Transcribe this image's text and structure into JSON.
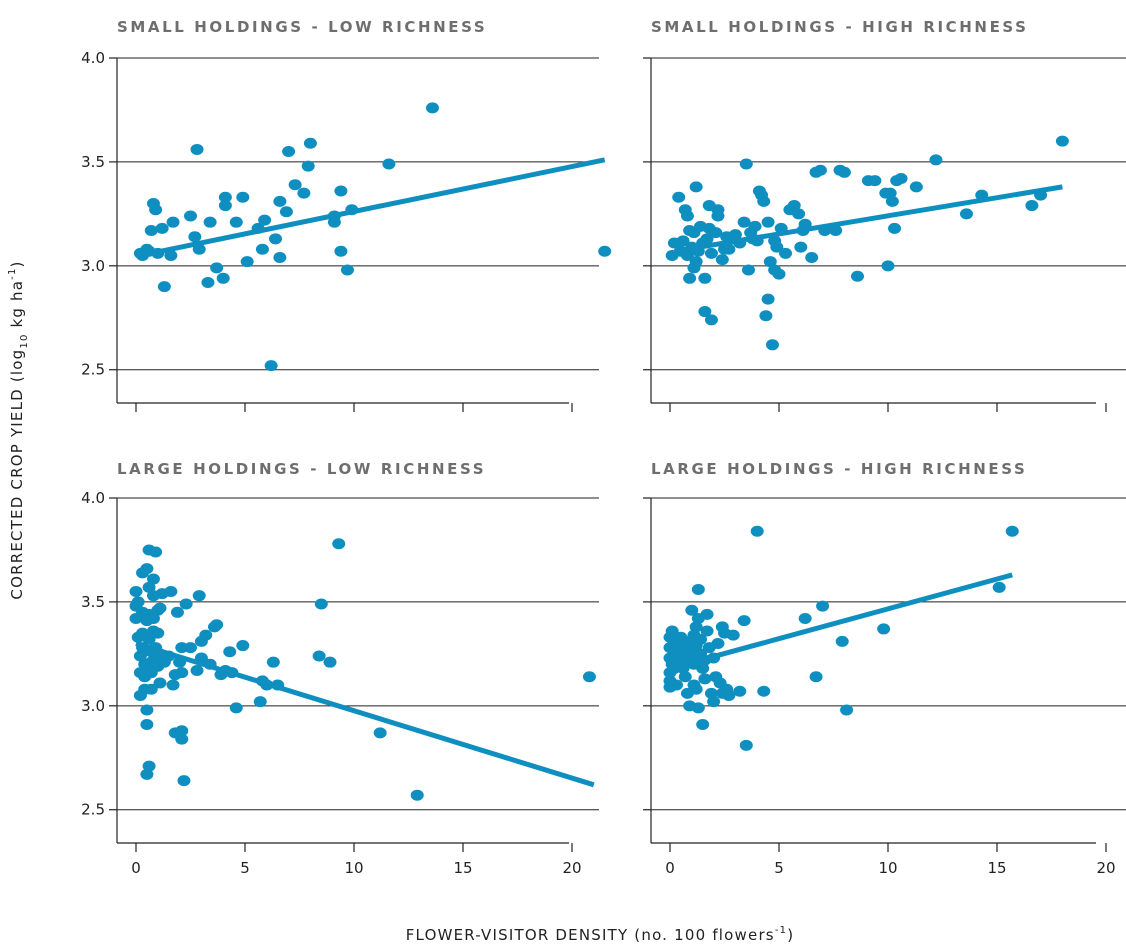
{
  "chart_data": [
    {
      "type": "scatter",
      "title": "SMALL HOLDINGS - LOW RICHNESS",
      "xlim": [
        -1,
        21.5
      ],
      "ylim": [
        2.34,
        4.0
      ],
      "yticks": [
        "2.5",
        "3.0",
        "3.5",
        "4.0"
      ],
      "xticks": [],
      "fit": {
        "x": [
          0.2,
          21.5
        ],
        "y": [
          3.05,
          3.51
        ]
      },
      "points": [
        [
          0.2,
          3.06
        ],
        [
          0.3,
          3.05
        ],
        [
          0.5,
          3.08
        ],
        [
          0.6,
          3.07
        ],
        [
          0.7,
          3.17
        ],
        [
          0.8,
          3.3
        ],
        [
          0.9,
          3.27
        ],
        [
          1.0,
          3.06
        ],
        [
          1.2,
          3.18
        ],
        [
          1.3,
          2.9
        ],
        [
          1.6,
          3.05
        ],
        [
          1.7,
          3.21
        ],
        [
          2.5,
          3.24
        ],
        [
          2.7,
          3.14
        ],
        [
          2.8,
          3.56
        ],
        [
          2.9,
          3.08
        ],
        [
          3.3,
          2.92
        ],
        [
          3.4,
          3.21
        ],
        [
          3.7,
          2.99
        ],
        [
          4.0,
          2.94
        ],
        [
          4.1,
          3.29
        ],
        [
          4.1,
          3.33
        ],
        [
          4.6,
          3.21
        ],
        [
          4.9,
          3.33
        ],
        [
          5.1,
          3.02
        ],
        [
          5.6,
          3.18
        ],
        [
          5.8,
          3.08
        ],
        [
          5.9,
          3.22
        ],
        [
          6.2,
          2.52
        ],
        [
          6.4,
          3.13
        ],
        [
          6.6,
          3.31
        ],
        [
          6.6,
          3.04
        ],
        [
          6.9,
          3.26
        ],
        [
          7.0,
          3.55
        ],
        [
          7.3,
          3.39
        ],
        [
          7.7,
          3.35
        ],
        [
          7.9,
          3.48
        ],
        [
          8.0,
          3.59
        ],
        [
          9.1,
          3.21
        ],
        [
          9.1,
          3.24
        ],
        [
          9.4,
          3.07
        ],
        [
          9.4,
          3.36
        ],
        [
          9.7,
          2.98
        ],
        [
          9.9,
          3.27
        ],
        [
          11.6,
          3.49
        ],
        [
          13.6,
          3.76
        ],
        [
          21.5,
          3.07
        ]
      ]
    },
    {
      "type": "scatter",
      "title": "SMALL HOLDINGS - HIGH RICHNESS",
      "xlim": [
        -1,
        21.5
      ],
      "ylim": [
        2.34,
        4.0
      ],
      "yticks": [
        "2.5",
        "3.0",
        "3.5",
        "4.0"
      ],
      "xticks": [],
      "fit": {
        "x": [
          0.2,
          18.0
        ],
        "y": [
          3.07,
          3.38
        ]
      },
      "points": [
        [
          0.1,
          3.05
        ],
        [
          0.2,
          3.11
        ],
        [
          0.4,
          3.33
        ],
        [
          0.5,
          3.07
        ],
        [
          0.6,
          3.12
        ],
        [
          0.7,
          3.27
        ],
        [
          0.8,
          3.24
        ],
        [
          0.8,
          3.05
        ],
        [
          0.9,
          2.94
        ],
        [
          0.9,
          3.17
        ],
        [
          1.0,
          3.09
        ],
        [
          1.1,
          3.16
        ],
        [
          1.1,
          2.99
        ],
        [
          1.2,
          3.38
        ],
        [
          1.2,
          3.02
        ],
        [
          1.3,
          3.07
        ],
        [
          1.4,
          3.19
        ],
        [
          1.5,
          3.11
        ],
        [
          1.6,
          2.78
        ],
        [
          1.6,
          2.94
        ],
        [
          1.7,
          3.13
        ],
        [
          1.8,
          3.18
        ],
        [
          1.8,
          3.29
        ],
        [
          1.9,
          2.74
        ],
        [
          1.9,
          3.06
        ],
        [
          2.1,
          3.16
        ],
        [
          2.2,
          3.24
        ],
        [
          2.2,
          3.27
        ],
        [
          2.4,
          3.03
        ],
        [
          2.5,
          3.08
        ],
        [
          2.6,
          3.14
        ],
        [
          2.7,
          3.08
        ],
        [
          2.9,
          3.13
        ],
        [
          3.0,
          3.15
        ],
        [
          3.2,
          3.11
        ],
        [
          3.4,
          3.21
        ],
        [
          3.5,
          3.49
        ],
        [
          3.6,
          2.98
        ],
        [
          3.7,
          3.16
        ],
        [
          3.8,
          3.13
        ],
        [
          3.9,
          3.19
        ],
        [
          4.0,
          3.12
        ],
        [
          4.1,
          3.36
        ],
        [
          4.2,
          3.34
        ],
        [
          4.3,
          3.31
        ],
        [
          4.4,
          2.76
        ],
        [
          4.5,
          3.21
        ],
        [
          4.5,
          2.84
        ],
        [
          4.6,
          3.02
        ],
        [
          4.7,
          2.62
        ],
        [
          4.8,
          2.98
        ],
        [
          4.8,
          3.12
        ],
        [
          4.9,
          3.09
        ],
        [
          5.0,
          2.96
        ],
        [
          5.1,
          3.18
        ],
        [
          5.3,
          3.06
        ],
        [
          5.5,
          3.27
        ],
        [
          5.7,
          3.29
        ],
        [
          5.9,
          3.25
        ],
        [
          6.0,
          3.09
        ],
        [
          6.1,
          3.17
        ],
        [
          6.2,
          3.2
        ],
        [
          6.5,
          3.04
        ],
        [
          6.7,
          3.45
        ],
        [
          6.9,
          3.46
        ],
        [
          7.1,
          3.17
        ],
        [
          7.6,
          3.17
        ],
        [
          7.8,
          3.46
        ],
        [
          8.0,
          3.45
        ],
        [
          8.6,
          2.95
        ],
        [
          9.1,
          3.41
        ],
        [
          9.4,
          3.41
        ],
        [
          9.9,
          3.35
        ],
        [
          10.0,
          3.0
        ],
        [
          10.1,
          3.35
        ],
        [
          10.2,
          3.31
        ],
        [
          10.3,
          3.18
        ],
        [
          10.4,
          3.41
        ],
        [
          10.6,
          3.42
        ],
        [
          11.3,
          3.38
        ],
        [
          12.2,
          3.51
        ],
        [
          13.6,
          3.25
        ],
        [
          14.3,
          3.34
        ],
        [
          16.6,
          3.29
        ],
        [
          17.0,
          3.34
        ],
        [
          18.0,
          3.6
        ]
      ]
    },
    {
      "type": "scatter",
      "title": "LARGE HOLDINGS - LOW RICHNESS",
      "xlim": [
        -1,
        21.5
      ],
      "ylim": [
        2.34,
        4.0
      ],
      "yticks": [
        "2.5",
        "3.0",
        "3.5",
        "4.0"
      ],
      "xticks": [
        "0",
        "5",
        "10",
        "15",
        "20"
      ],
      "fit": {
        "x": [
          0.0,
          21.0
        ],
        "y": [
          3.3,
          2.62
        ]
      },
      "points": [
        [
          0.0,
          3.42
        ],
        [
          0.0,
          3.48
        ],
        [
          0.0,
          3.55
        ],
        [
          0.1,
          3.33
        ],
        [
          0.1,
          3.5
        ],
        [
          0.2,
          3.24
        ],
        [
          0.2,
          3.16
        ],
        [
          0.2,
          3.05
        ],
        [
          0.3,
          3.64
        ],
        [
          0.3,
          3.45
        ],
        [
          0.3,
          3.35
        ],
        [
          0.3,
          3.28
        ],
        [
          0.4,
          3.2
        ],
        [
          0.4,
          3.14
        ],
        [
          0.4,
          3.08
        ],
        [
          0.5,
          3.66
        ],
        [
          0.5,
          3.41
        ],
        [
          0.5,
          2.98
        ],
        [
          0.5,
          2.91
        ],
        [
          0.5,
          2.67
        ],
        [
          0.6,
          2.71
        ],
        [
          0.6,
          3.75
        ],
        [
          0.6,
          3.57
        ],
        [
          0.6,
          3.44
        ],
        [
          0.6,
          3.32
        ],
        [
          0.7,
          3.26
        ],
        [
          0.7,
          3.21
        ],
        [
          0.7,
          3.16
        ],
        [
          0.7,
          3.08
        ],
        [
          0.8,
          3.61
        ],
        [
          0.8,
          3.53
        ],
        [
          0.8,
          3.42
        ],
        [
          0.8,
          3.36
        ],
        [
          0.9,
          3.74
        ],
        [
          0.9,
          3.28
        ],
        [
          0.9,
          3.23
        ],
        [
          1.0,
          3.46
        ],
        [
          1.0,
          3.35
        ],
        [
          1.0,
          3.19
        ],
        [
          1.1,
          3.47
        ],
        [
          1.1,
          3.25
        ],
        [
          1.1,
          3.11
        ],
        [
          1.2,
          3.54
        ],
        [
          1.3,
          3.21
        ],
        [
          1.5,
          3.24
        ],
        [
          1.6,
          3.55
        ],
        [
          1.7,
          3.1
        ],
        [
          1.8,
          3.15
        ],
        [
          1.8,
          2.87
        ],
        [
          1.9,
          3.45
        ],
        [
          2.0,
          3.21
        ],
        [
          2.1,
          3.16
        ],
        [
          2.1,
          3.28
        ],
        [
          2.1,
          2.88
        ],
        [
          2.1,
          2.84
        ],
        [
          2.2,
          2.64
        ],
        [
          2.3,
          3.49
        ],
        [
          2.5,
          3.28
        ],
        [
          2.8,
          3.17
        ],
        [
          2.9,
          3.53
        ],
        [
          3.0,
          3.23
        ],
        [
          3.0,
          3.31
        ],
        [
          3.2,
          3.34
        ],
        [
          3.4,
          3.2
        ],
        [
          3.6,
          3.38
        ],
        [
          3.7,
          3.39
        ],
        [
          3.9,
          3.15
        ],
        [
          4.1,
          3.17
        ],
        [
          4.3,
          3.26
        ],
        [
          4.4,
          3.16
        ],
        [
          4.6,
          2.99
        ],
        [
          4.9,
          3.29
        ],
        [
          5.7,
          3.02
        ],
        [
          5.8,
          3.12
        ],
        [
          6.0,
          3.1
        ],
        [
          6.3,
          3.21
        ],
        [
          6.5,
          3.1
        ],
        [
          8.4,
          3.24
        ],
        [
          8.5,
          3.49
        ],
        [
          8.9,
          3.21
        ],
        [
          9.3,
          3.78
        ],
        [
          11.2,
          2.87
        ],
        [
          12.9,
          2.57
        ],
        [
          20.8,
          3.14
        ]
      ]
    },
    {
      "type": "scatter",
      "title": "LARGE HOLDINGS - HIGH RICHNESS",
      "xlim": [
        -1,
        21.5
      ],
      "ylim": [
        2.34,
        4.0
      ],
      "yticks": [
        "2.5",
        "3.0",
        "3.5",
        "4.0"
      ],
      "xticks": [
        "0",
        "5",
        "10",
        "15",
        "20"
      ],
      "fit": {
        "x": [
          0.0,
          15.7
        ],
        "y": [
          3.18,
          3.63
        ]
      },
      "points": [
        [
          0.0,
          3.09
        ],
        [
          0.0,
          3.12
        ],
        [
          0.0,
          3.16
        ],
        [
          0.0,
          3.23
        ],
        [
          0.0,
          3.28
        ],
        [
          0.0,
          3.33
        ],
        [
          0.1,
          3.36
        ],
        [
          0.1,
          3.2
        ],
        [
          0.2,
          3.18
        ],
        [
          0.2,
          3.25
        ],
        [
          0.3,
          3.3
        ],
        [
          0.3,
          3.1
        ],
        [
          0.4,
          3.22
        ],
        [
          0.5,
          3.33
        ],
        [
          0.5,
          3.27
        ],
        [
          0.6,
          3.18
        ],
        [
          0.6,
          3.28
        ],
        [
          0.7,
          3.21
        ],
        [
          0.7,
          3.14
        ],
        [
          0.8,
          3.06
        ],
        [
          0.8,
          3.25
        ],
        [
          0.9,
          3.0
        ],
        [
          0.9,
          3.31
        ],
        [
          1.0,
          3.46
        ],
        [
          1.0,
          3.27
        ],
        [
          1.0,
          3.22
        ],
        [
          1.1,
          3.1
        ],
        [
          1.1,
          3.34
        ],
        [
          1.1,
          3.2
        ],
        [
          1.2,
          3.38
        ],
        [
          1.2,
          3.08
        ],
        [
          1.2,
          3.29
        ],
        [
          1.3,
          3.42
        ],
        [
          1.3,
          3.56
        ],
        [
          1.3,
          2.99
        ],
        [
          1.4,
          3.25
        ],
        [
          1.4,
          3.32
        ],
        [
          1.5,
          3.18
        ],
        [
          1.5,
          2.91
        ],
        [
          1.6,
          3.22
        ],
        [
          1.6,
          3.13
        ],
        [
          1.7,
          3.36
        ],
        [
          1.7,
          3.44
        ],
        [
          1.8,
          3.28
        ],
        [
          1.9,
          3.06
        ],
        [
          2.0,
          3.02
        ],
        [
          2.0,
          3.23
        ],
        [
          2.1,
          3.14
        ],
        [
          2.2,
          3.3
        ],
        [
          2.3,
          3.11
        ],
        [
          2.4,
          3.06
        ],
        [
          2.4,
          3.38
        ],
        [
          2.5,
          3.35
        ],
        [
          2.6,
          3.08
        ],
        [
          2.7,
          3.05
        ],
        [
          2.9,
          3.34
        ],
        [
          3.2,
          3.07
        ],
        [
          3.4,
          3.41
        ],
        [
          3.5,
          2.81
        ],
        [
          4.0,
          3.84
        ],
        [
          4.3,
          3.07
        ],
        [
          6.2,
          3.42
        ],
        [
          6.7,
          3.14
        ],
        [
          7.0,
          3.48
        ],
        [
          7.9,
          3.31
        ],
        [
          8.1,
          2.98
        ],
        [
          9.8,
          3.37
        ],
        [
          15.1,
          3.57
        ],
        [
          15.7,
          3.84
        ]
      ]
    }
  ],
  "ylabel_main": "CORRECTED CROP YIELD (log",
  "ylabel_sub": "10",
  "ylabel_rest": " kg ha",
  "ylabel_sup": "-1",
  "ylabel_close": ")",
  "xlabel_main": "FLOWER-VISITOR DENSITY (no. 100 flowers",
  "xlabel_sup": "-1",
  "xlabel_close": ")"
}
